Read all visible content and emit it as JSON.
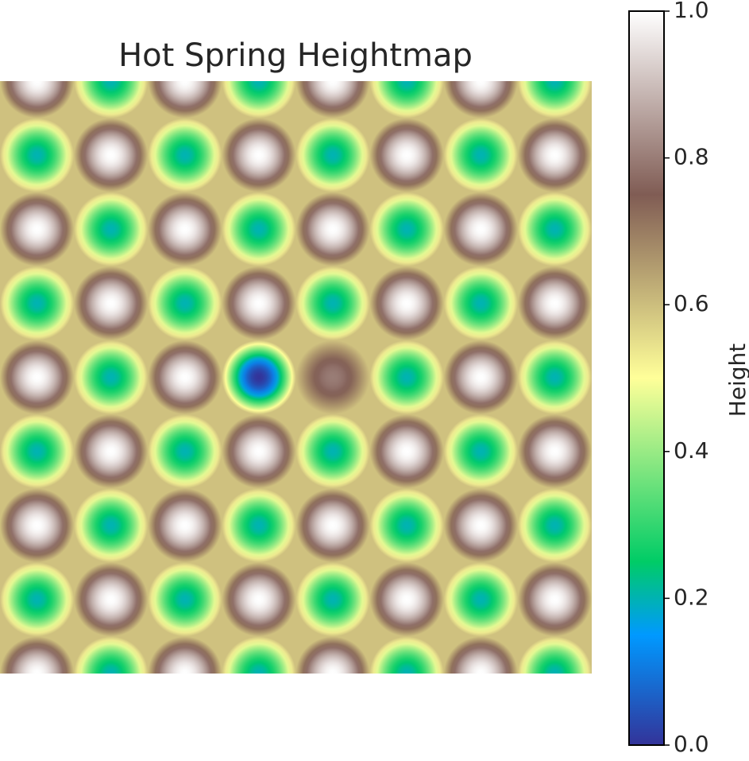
{
  "chart_data": {
    "type": "heatmap",
    "title": "Hot Spring Heightmap",
    "colorbar_label": "Height",
    "values": [
      [
        1,
        0.2,
        1,
        0.2,
        1,
        0.2,
        1,
        0.2
      ],
      [
        0.2,
        1,
        0.2,
        1,
        0.2,
        1,
        0.2,
        1
      ],
      [
        1,
        0.2,
        1,
        0.2,
        1,
        0.2,
        1,
        0.2
      ],
      [
        0.2,
        1,
        0.2,
        1,
        0.2,
        1,
        0.2,
        1
      ],
      [
        1,
        0.2,
        1,
        0,
        0.8,
        0.2,
        1,
        0.2
      ],
      [
        0.2,
        1,
        0.2,
        1,
        0.2,
        1,
        0.2,
        1
      ],
      [
        1,
        0.2,
        1,
        0.2,
        1,
        0.2,
        1,
        0.2
      ],
      [
        0.2,
        1,
        0.2,
        1,
        0.2,
        1,
        0.2,
        1
      ],
      [
        1,
        0.2,
        1,
        0.2,
        1,
        0.2,
        1,
        0.2
      ]
    ],
    "clim": [
      0,
      1
    ],
    "cticks": [
      {
        "value": 0,
        "label": "0.0"
      },
      0.2,
      0.4,
      0.6,
      0.8,
      {
        "value": 1,
        "label": "1.0"
      }
    ],
    "colors": [
      "#333399",
      "#0099ff",
      "#00cc66",
      "#ffff99",
      "#805c54",
      "#ffffff"
    ]
  }
}
